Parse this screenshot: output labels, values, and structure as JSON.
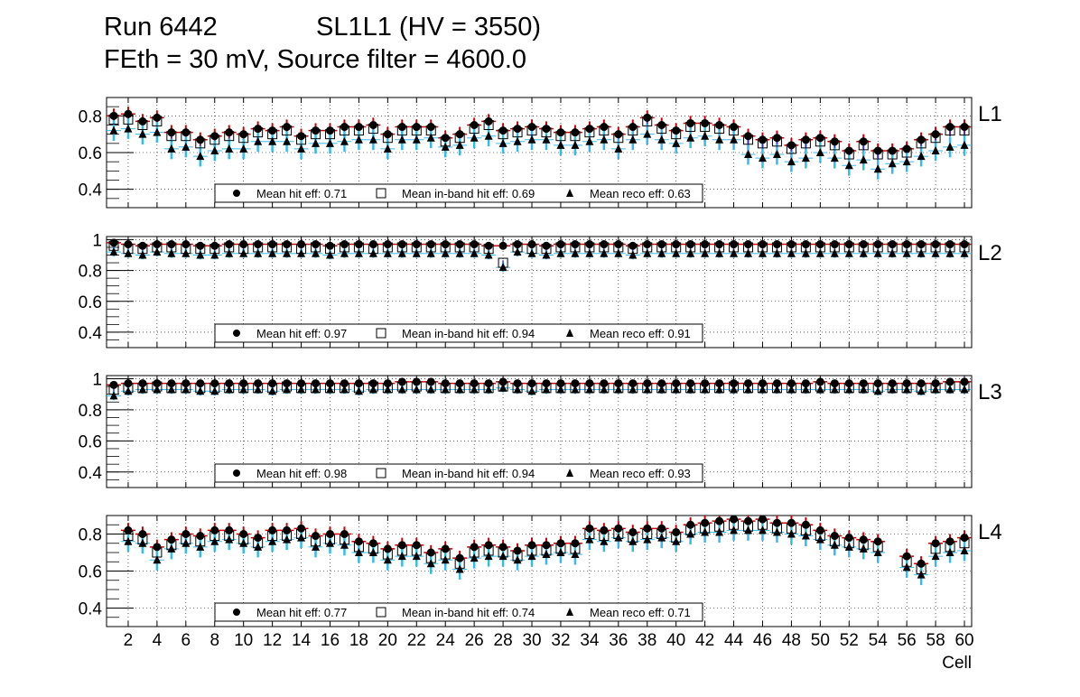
{
  "header": {
    "run": "Run 6442",
    "chamber": "SL1L1 (HV = 3550)",
    "settings": "FEth = 30 mV, Source filter = 4600.0"
  },
  "legend_labels": {
    "hit": "Mean hit  eff:",
    "inband": "Mean in-band hit eff:",
    "reco": "Mean reco eff:"
  },
  "colors": {
    "hit_error": "#cc0000",
    "inband_error": "#3333cc",
    "reco_error": "#33bbee",
    "marker": "#000000"
  },
  "chart_data": [
    {
      "type": "scatter",
      "layer": "L1",
      "xlabel": "Cell",
      "ylim": [
        0.3,
        0.9
      ],
      "yticks": [
        "0.4",
        "0.6",
        "0.8"
      ],
      "x": [
        1,
        2,
        3,
        4,
        5,
        6,
        7,
        8,
        9,
        10,
        11,
        12,
        13,
        14,
        15,
        16,
        17,
        18,
        19,
        20,
        21,
        22,
        23,
        24,
        25,
        26,
        27,
        28,
        29,
        30,
        31,
        32,
        33,
        34,
        35,
        36,
        37,
        38,
        39,
        40,
        41,
        42,
        43,
        44,
        45,
        46,
        47,
        48,
        49,
        50,
        51,
        52,
        53,
        54,
        55,
        56,
        57,
        58,
        59,
        60
      ],
      "legend": {
        "hit": "0.71",
        "inband": "0.69",
        "reco": "0.63"
      },
      "series": [
        {
          "name": "Mean hit  eff: 0.71",
          "marker": "circle",
          "values": [
            0.8,
            0.81,
            0.77,
            0.79,
            0.71,
            0.71,
            0.67,
            0.69,
            0.71,
            0.7,
            0.73,
            0.72,
            0.74,
            0.69,
            0.72,
            0.72,
            0.74,
            0.74,
            0.75,
            0.7,
            0.74,
            0.74,
            0.74,
            0.68,
            0.7,
            0.75,
            0.77,
            0.72,
            0.73,
            0.74,
            0.73,
            0.71,
            0.71,
            0.73,
            0.74,
            0.7,
            0.74,
            0.79,
            0.75,
            0.72,
            0.76,
            0.76,
            0.75,
            0.74,
            0.69,
            0.67,
            0.68,
            0.64,
            0.67,
            0.68,
            0.66,
            0.61,
            0.66,
            0.61,
            0.61,
            0.62,
            0.67,
            0.7,
            0.74,
            0.74
          ]
        },
        {
          "name": "Mean in-band hit eff: 0.69",
          "marker": "open-square",
          "values": [
            0.78,
            0.78,
            0.75,
            0.77,
            0.69,
            0.69,
            0.65,
            0.67,
            0.69,
            0.68,
            0.71,
            0.7,
            0.72,
            0.67,
            0.7,
            0.7,
            0.72,
            0.72,
            0.73,
            0.68,
            0.72,
            0.72,
            0.72,
            0.66,
            0.68,
            0.73,
            0.75,
            0.7,
            0.71,
            0.72,
            0.71,
            0.69,
            0.69,
            0.71,
            0.72,
            0.68,
            0.72,
            0.77,
            0.73,
            0.7,
            0.74,
            0.74,
            0.73,
            0.72,
            0.67,
            0.65,
            0.66,
            0.62,
            0.65,
            0.66,
            0.64,
            0.59,
            0.64,
            0.59,
            0.59,
            0.6,
            0.65,
            0.68,
            0.72,
            0.72
          ]
        },
        {
          "name": "Mean reco eff: 0.63",
          "marker": "triangle",
          "values": [
            0.72,
            0.73,
            0.7,
            0.71,
            0.62,
            0.63,
            0.58,
            0.61,
            0.62,
            0.62,
            0.66,
            0.66,
            0.66,
            0.62,
            0.65,
            0.65,
            0.66,
            0.67,
            0.67,
            0.62,
            0.67,
            0.67,
            0.68,
            0.63,
            0.64,
            0.68,
            0.69,
            0.65,
            0.66,
            0.67,
            0.67,
            0.64,
            0.64,
            0.66,
            0.67,
            0.62,
            0.67,
            0.7,
            0.67,
            0.65,
            0.68,
            0.69,
            0.67,
            0.67,
            0.59,
            0.57,
            0.59,
            0.55,
            0.57,
            0.6,
            0.57,
            0.53,
            0.56,
            0.51,
            0.54,
            0.55,
            0.58,
            0.61,
            0.63,
            0.64
          ]
        }
      ]
    },
    {
      "type": "scatter",
      "layer": "L2",
      "xlabel": "Cell",
      "ylim": [
        0.3,
        1.02
      ],
      "yticks": [
        "0.4",
        "0.6",
        "0.8",
        "1"
      ],
      "x": [
        1,
        2,
        3,
        4,
        5,
        6,
        7,
        8,
        9,
        10,
        11,
        12,
        13,
        14,
        15,
        16,
        17,
        18,
        19,
        20,
        21,
        22,
        23,
        24,
        25,
        26,
        27,
        28,
        29,
        30,
        31,
        32,
        33,
        34,
        35,
        36,
        37,
        38,
        39,
        40,
        41,
        42,
        43,
        44,
        45,
        46,
        47,
        48,
        49,
        50,
        51,
        52,
        53,
        54,
        55,
        56,
        57,
        58,
        59,
        60
      ],
      "legend": {
        "hit": "0.97",
        "inband": "0.94",
        "reco": "0.91"
      },
      "series": [
        {
          "name": "Mean hit  eff: 0.97",
          "marker": "circle",
          "values": [
            0.98,
            0.97,
            0.96,
            0.97,
            0.97,
            0.97,
            0.96,
            0.96,
            0.97,
            0.97,
            0.97,
            0.97,
            0.97,
            0.97,
            0.97,
            0.96,
            0.97,
            0.97,
            0.97,
            0.97,
            0.97,
            0.97,
            0.97,
            0.97,
            0.97,
            0.97,
            0.96,
            0.96,
            0.97,
            0.97,
            0.96,
            0.97,
            0.97,
            0.97,
            0.97,
            0.97,
            0.96,
            0.97,
            0.97,
            0.97,
            0.97,
            0.97,
            0.97,
            0.97,
            0.97,
            0.97,
            0.97,
            0.97,
            0.97,
            0.97,
            0.97,
            0.97,
            0.97,
            0.97,
            0.97,
            0.97,
            0.97,
            0.97,
            0.97,
            0.97
          ]
        },
        {
          "name": "Mean in-band hit eff: 0.94",
          "marker": "open-square",
          "values": [
            0.96,
            0.94,
            0.94,
            0.95,
            0.95,
            0.94,
            0.94,
            0.94,
            0.95,
            0.94,
            0.95,
            0.95,
            0.95,
            0.94,
            0.95,
            0.94,
            0.95,
            0.95,
            0.94,
            0.95,
            0.95,
            0.95,
            0.95,
            0.95,
            0.95,
            0.95,
            0.94,
            0.85,
            0.95,
            0.94,
            0.94,
            0.95,
            0.95,
            0.95,
            0.95,
            0.95,
            0.94,
            0.95,
            0.95,
            0.95,
            0.95,
            0.95,
            0.95,
            0.95,
            0.95,
            0.95,
            0.95,
            0.95,
            0.95,
            0.95,
            0.95,
            0.95,
            0.95,
            0.95,
            0.95,
            0.95,
            0.95,
            0.95,
            0.95,
            0.95
          ]
        },
        {
          "name": "Mean reco eff: 0.91",
          "marker": "triangle",
          "values": [
            0.92,
            0.91,
            0.9,
            0.92,
            0.91,
            0.91,
            0.9,
            0.9,
            0.91,
            0.91,
            0.91,
            0.91,
            0.91,
            0.91,
            0.91,
            0.9,
            0.91,
            0.91,
            0.91,
            0.91,
            0.91,
            0.91,
            0.91,
            0.91,
            0.91,
            0.91,
            0.9,
            0.82,
            0.92,
            0.91,
            0.9,
            0.91,
            0.91,
            0.91,
            0.91,
            0.91,
            0.9,
            0.91,
            0.91,
            0.91,
            0.91,
            0.91,
            0.91,
            0.91,
            0.91,
            0.91,
            0.91,
            0.91,
            0.91,
            0.91,
            0.91,
            0.91,
            0.91,
            0.91,
            0.91,
            0.91,
            0.91,
            0.91,
            0.91,
            0.91
          ]
        }
      ]
    },
    {
      "type": "scatter",
      "layer": "L3",
      "xlabel": "Cell",
      "ylim": [
        0.3,
        1.02
      ],
      "yticks": [
        "0.4",
        "0.6",
        "0.8",
        "1"
      ],
      "x": [
        1,
        2,
        3,
        4,
        5,
        6,
        7,
        8,
        9,
        10,
        11,
        12,
        13,
        14,
        15,
        16,
        17,
        18,
        19,
        20,
        21,
        22,
        23,
        24,
        25,
        26,
        27,
        28,
        29,
        30,
        31,
        32,
        33,
        34,
        35,
        36,
        37,
        38,
        39,
        40,
        41,
        42,
        43,
        44,
        45,
        46,
        47,
        48,
        49,
        50,
        51,
        52,
        53,
        54,
        55,
        56,
        57,
        58,
        59,
        60
      ],
      "legend": {
        "hit": "0.98",
        "inband": "0.94",
        "reco": "0.93"
      },
      "series": [
        {
          "name": "Mean hit  eff: 0.98",
          "marker": "circle",
          "values": [
            0.96,
            0.97,
            0.97,
            0.97,
            0.97,
            0.97,
            0.97,
            0.97,
            0.97,
            0.97,
            0.97,
            0.97,
            0.97,
            0.97,
            0.97,
            0.97,
            0.97,
            0.97,
            0.97,
            0.97,
            0.98,
            0.98,
            0.98,
            0.97,
            0.97,
            0.97,
            0.97,
            0.98,
            0.97,
            0.97,
            0.97,
            0.97,
            0.97,
            0.97,
            0.97,
            0.97,
            0.97,
            0.97,
            0.97,
            0.97,
            0.97,
            0.97,
            0.97,
            0.97,
            0.97,
            0.97,
            0.97,
            0.97,
            0.97,
            0.98,
            0.97,
            0.97,
            0.97,
            0.97,
            0.97,
            0.97,
            0.97,
            0.97,
            0.98,
            0.98
          ]
        },
        {
          "name": "Mean in-band hit eff: 0.94",
          "marker": "open-square",
          "values": [
            0.93,
            0.94,
            0.94,
            0.95,
            0.94,
            0.94,
            0.94,
            0.94,
            0.94,
            0.94,
            0.94,
            0.94,
            0.95,
            0.94,
            0.94,
            0.94,
            0.94,
            0.94,
            0.95,
            0.94,
            0.95,
            0.95,
            0.95,
            0.94,
            0.94,
            0.94,
            0.94,
            0.95,
            0.94,
            0.94,
            0.94,
            0.94,
            0.94,
            0.94,
            0.94,
            0.94,
            0.94,
            0.94,
            0.94,
            0.94,
            0.94,
            0.94,
            0.94,
            0.95,
            0.94,
            0.94,
            0.94,
            0.94,
            0.94,
            0.95,
            0.94,
            0.94,
            0.94,
            0.94,
            0.94,
            0.94,
            0.94,
            0.94,
            0.95,
            0.95
          ]
        },
        {
          "name": "Mean reco eff: 0.93",
          "marker": "triangle",
          "values": [
            0.89,
            0.92,
            0.93,
            0.93,
            0.93,
            0.93,
            0.92,
            0.92,
            0.93,
            0.93,
            0.93,
            0.92,
            0.93,
            0.93,
            0.93,
            0.93,
            0.93,
            0.92,
            0.93,
            0.93,
            0.93,
            0.93,
            0.93,
            0.93,
            0.93,
            0.93,
            0.93,
            0.94,
            0.93,
            0.92,
            0.93,
            0.93,
            0.93,
            0.93,
            0.93,
            0.93,
            0.93,
            0.93,
            0.93,
            0.93,
            0.93,
            0.93,
            0.93,
            0.93,
            0.93,
            0.93,
            0.93,
            0.93,
            0.93,
            0.93,
            0.93,
            0.93,
            0.93,
            0.92,
            0.93,
            0.93,
            0.92,
            0.93,
            0.93,
            0.93
          ]
        }
      ]
    },
    {
      "type": "scatter",
      "layer": "L4",
      "xlabel": "Cell",
      "ylim": [
        0.3,
        0.9
      ],
      "yticks": [
        "0.4",
        "0.6",
        "0.8"
      ],
      "x": [
        1,
        2,
        3,
        4,
        5,
        6,
        7,
        8,
        9,
        10,
        11,
        12,
        13,
        14,
        15,
        16,
        17,
        18,
        19,
        20,
        21,
        22,
        23,
        24,
        25,
        26,
        27,
        28,
        29,
        30,
        31,
        32,
        33,
        34,
        35,
        36,
        37,
        38,
        39,
        40,
        41,
        42,
        43,
        44,
        45,
        46,
        47,
        48,
        49,
        50,
        51,
        52,
        53,
        54,
        55,
        56,
        57,
        58,
        59,
        60
      ],
      "legend": {
        "hit": "0.77",
        "inband": "0.74",
        "reco": "0.71"
      },
      "series": [
        {
          "name": "Mean hit  eff: 0.77",
          "marker": "circle",
          "values": [
            null,
            0.82,
            0.8,
            0.73,
            0.77,
            0.8,
            0.79,
            0.82,
            0.82,
            0.8,
            0.78,
            0.82,
            0.82,
            0.83,
            0.79,
            0.8,
            0.8,
            0.76,
            0.75,
            0.72,
            0.74,
            0.74,
            0.7,
            0.72,
            0.67,
            0.73,
            0.74,
            0.73,
            0.71,
            0.74,
            0.74,
            0.75,
            0.75,
            0.83,
            0.82,
            0.83,
            0.81,
            0.83,
            0.83,
            0.81,
            0.85,
            0.86,
            0.87,
            0.88,
            0.87,
            0.88,
            0.86,
            0.86,
            0.85,
            0.82,
            0.79,
            0.78,
            0.77,
            0.76,
            null,
            0.68,
            0.64,
            0.75,
            0.76,
            0.78
          ]
        },
        {
          "name": "Mean in-band hit eff: 0.74",
          "marker": "open-square",
          "values": [
            null,
            0.79,
            0.77,
            0.7,
            0.74,
            0.77,
            0.76,
            0.79,
            0.79,
            0.77,
            0.75,
            0.79,
            0.79,
            0.8,
            0.76,
            0.77,
            0.77,
            0.73,
            0.72,
            0.69,
            0.71,
            0.71,
            0.67,
            0.69,
            0.64,
            0.7,
            0.71,
            0.7,
            0.68,
            0.71,
            0.71,
            0.72,
            0.72,
            0.8,
            0.79,
            0.8,
            0.78,
            0.8,
            0.8,
            0.78,
            0.82,
            0.83,
            0.84,
            0.85,
            0.84,
            0.85,
            0.83,
            0.83,
            0.82,
            0.79,
            0.76,
            0.75,
            0.74,
            0.73,
            null,
            0.65,
            0.61,
            0.72,
            0.73,
            0.75
          ]
        },
        {
          "name": "Mean reco eff: 0.71",
          "marker": "triangle",
          "values": [
            null,
            0.76,
            0.75,
            0.66,
            0.72,
            0.75,
            0.73,
            0.76,
            0.77,
            0.75,
            0.73,
            0.76,
            0.77,
            0.78,
            0.73,
            0.75,
            0.74,
            0.7,
            0.7,
            0.66,
            0.68,
            0.68,
            0.64,
            0.66,
            0.61,
            0.67,
            0.68,
            0.68,
            0.66,
            0.68,
            0.69,
            0.7,
            0.69,
            0.77,
            0.76,
            0.78,
            0.76,
            0.77,
            0.78,
            0.76,
            0.8,
            0.81,
            0.81,
            0.82,
            0.82,
            0.82,
            0.81,
            0.8,
            0.79,
            0.77,
            0.74,
            0.73,
            0.72,
            0.7,
            null,
            0.62,
            0.58,
            0.68,
            0.7,
            0.71
          ]
        }
      ]
    }
  ],
  "x_ticks": [
    "2",
    "4",
    "6",
    "8",
    "10",
    "12",
    "14",
    "16",
    "18",
    "20",
    "22",
    "24",
    "26",
    "28",
    "30",
    "32",
    "34",
    "36",
    "38",
    "40",
    "42",
    "44",
    "46",
    "48",
    "50",
    "52",
    "54",
    "56",
    "58",
    "60"
  ]
}
